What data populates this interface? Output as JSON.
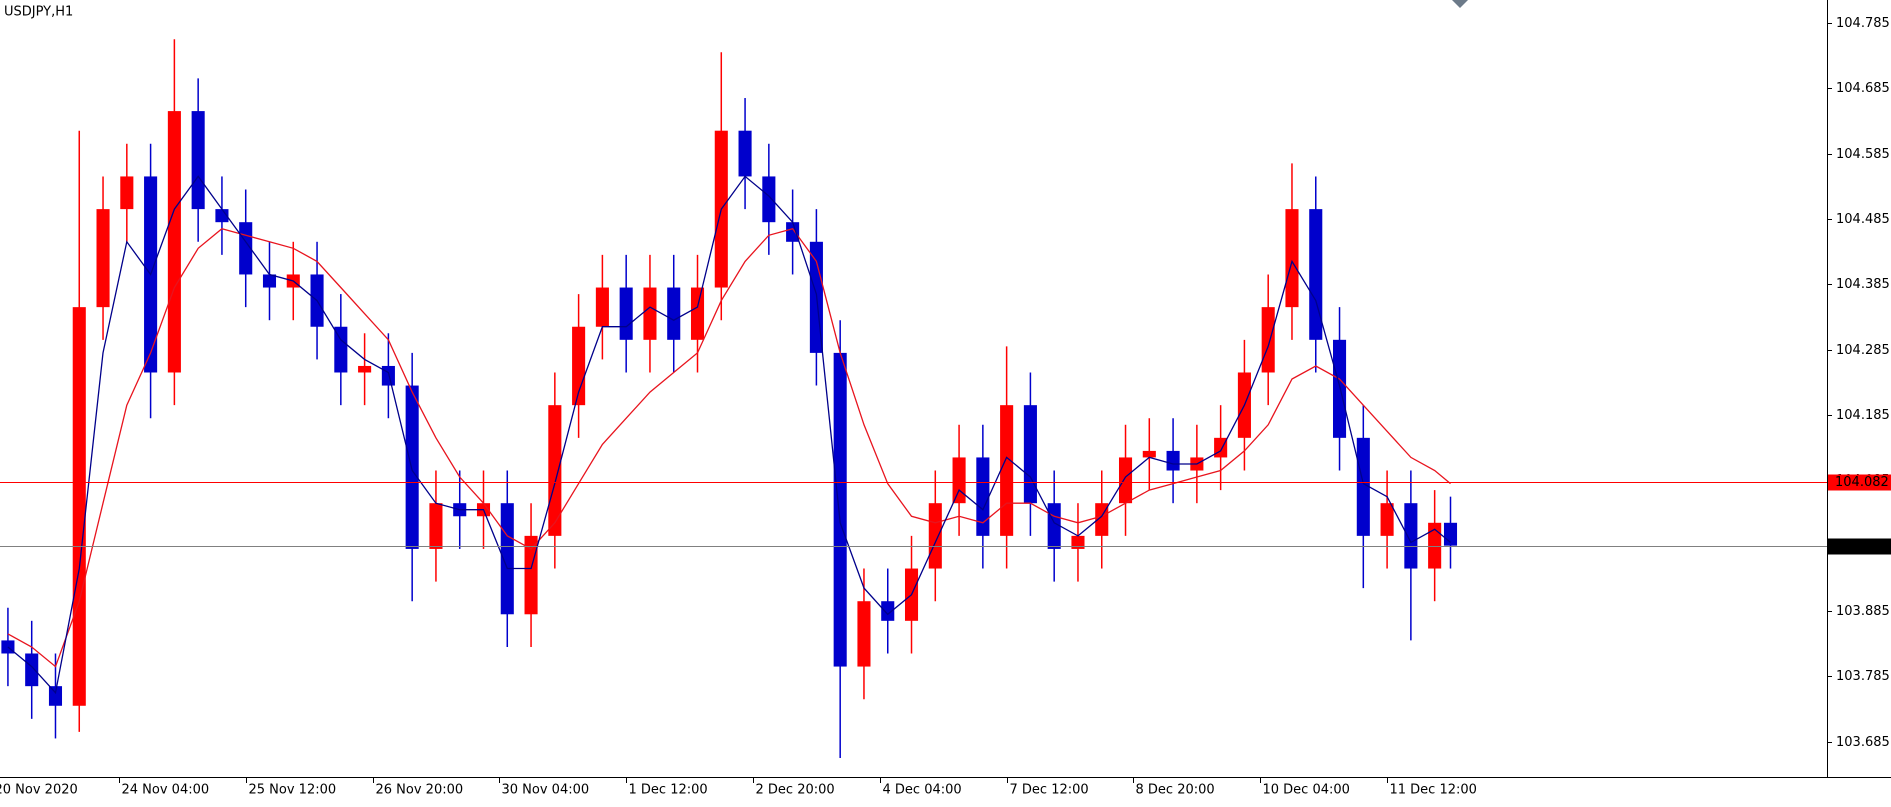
{
  "chart_data": {
    "type": "candlestick",
    "title": "USDJPY,H1",
    "up_color": "#ff0000",
    "down_color": "#0000cc",
    "x": [
      0,
      6,
      12,
      18,
      24,
      30,
      36,
      42,
      48,
      54,
      60,
      66,
      72,
      78,
      84,
      90,
      96,
      102,
      108,
      114,
      120,
      126,
      132,
      138,
      144,
      150,
      156,
      162,
      168,
      174,
      180,
      186,
      192,
      198,
      204,
      210,
      216,
      222,
      228,
      234,
      240,
      246,
      252,
      258,
      264,
      270,
      276,
      282,
      288,
      294,
      300,
      306,
      312,
      318,
      324,
      330,
      336,
      342,
      348,
      354,
      360,
      364
    ],
    "open": [
      103.84,
      103.82,
      103.77,
      103.74,
      104.35,
      104.5,
      104.55,
      104.25,
      104.65,
      104.5,
      104.48,
      104.4,
      104.38,
      104.4,
      104.32,
      104.25,
      104.26,
      104.23,
      103.98,
      104.05,
      104.03,
      104.05,
      103.88,
      104.0,
      104.2,
      104.32,
      104.38,
      104.3,
      104.38,
      104.3,
      104.38,
      104.62,
      104.55,
      104.48,
      104.45,
      104.28,
      103.8,
      103.9,
      103.87,
      103.95,
      104.05,
      104.12,
      104.0,
      104.2,
      104.05,
      103.98,
      104.0,
      104.05,
      104.12,
      104.13,
      104.1,
      104.12,
      104.15,
      104.25,
      104.35,
      104.5,
      104.3,
      104.15,
      104.0,
      104.05,
      103.95,
      104.02
    ],
    "high": [
      103.89,
      103.87,
      103.82,
      104.62,
      104.55,
      104.6,
      104.6,
      104.76,
      104.7,
      104.55,
      104.53,
      104.45,
      104.45,
      104.45,
      104.37,
      104.31,
      104.31,
      104.28,
      104.1,
      104.1,
      104.1,
      104.1,
      104.05,
      104.25,
      104.37,
      104.43,
      104.43,
      104.43,
      104.43,
      104.43,
      104.74,
      104.67,
      104.6,
      104.53,
      104.5,
      104.33,
      103.95,
      103.95,
      104.0,
      104.1,
      104.17,
      104.17,
      104.29,
      104.25,
      104.1,
      104.05,
      104.1,
      104.17,
      104.18,
      104.18,
      104.17,
      104.2,
      104.3,
      104.4,
      104.57,
      104.55,
      104.35,
      104.2,
      104.1,
      104.1,
      104.07,
      104.06
    ],
    "low": [
      103.77,
      103.72,
      103.69,
      103.7,
      104.3,
      104.45,
      104.18,
      104.2,
      104.45,
      104.43,
      104.35,
      104.33,
      104.33,
      104.27,
      104.2,
      104.2,
      104.18,
      103.9,
      103.93,
      103.98,
      103.98,
      103.83,
      103.83,
      103.95,
      104.15,
      104.27,
      104.25,
      104.25,
      104.25,
      104.25,
      104.33,
      104.5,
      104.43,
      104.4,
      104.23,
      103.66,
      103.75,
      103.82,
      103.82,
      103.9,
      104.0,
      103.95,
      103.95,
      104.0,
      103.93,
      103.93,
      103.95,
      104.0,
      104.07,
      104.05,
      104.05,
      104.07,
      104.1,
      104.2,
      104.3,
      104.25,
      104.1,
      103.92,
      103.95,
      103.84,
      103.9,
      103.95
    ],
    "close": [
      103.82,
      103.77,
      103.74,
      104.35,
      104.5,
      104.55,
      104.25,
      104.65,
      104.5,
      104.48,
      104.4,
      104.38,
      104.4,
      104.32,
      104.25,
      104.26,
      104.23,
      103.98,
      104.05,
      104.03,
      104.05,
      103.88,
      104.0,
      104.2,
      104.32,
      104.38,
      104.3,
      104.38,
      104.3,
      104.38,
      104.62,
      104.55,
      104.48,
      104.45,
      104.28,
      103.8,
      103.9,
      103.87,
      103.95,
      104.05,
      104.12,
      104.0,
      104.2,
      104.05,
      103.98,
      104.0,
      104.05,
      104.12,
      104.13,
      104.1,
      104.12,
      104.15,
      104.25,
      104.35,
      104.5,
      104.3,
      104.15,
      104.0,
      104.05,
      103.95,
      104.02,
      103.985
    ],
    "series": [
      {
        "color": "#e8141e",
        "values": [
          103.85,
          103.83,
          103.8,
          103.9,
          104.05,
          104.2,
          104.28,
          104.38,
          104.44,
          104.47,
          104.46,
          104.45,
          104.44,
          104.42,
          104.38,
          104.34,
          104.3,
          104.22,
          104.15,
          104.09,
          104.05,
          104.0,
          103.98,
          104.02,
          104.08,
          104.14,
          104.18,
          104.22,
          104.25,
          104.28,
          104.36,
          104.42,
          104.46,
          104.47,
          104.42,
          104.28,
          104.17,
          104.08,
          104.03,
          104.02,
          104.03,
          104.02,
          104.05,
          104.05,
          104.03,
          104.02,
          104.03,
          104.05,
          104.07,
          104.08,
          104.09,
          104.1,
          104.13,
          104.17,
          104.24,
          104.26,
          104.24,
          104.2,
          104.16,
          104.12,
          104.1,
          104.08
        ]
      },
      {
        "color": "#00008b",
        "values": [
          103.83,
          103.8,
          103.76,
          103.95,
          104.28,
          104.45,
          104.4,
          104.5,
          104.55,
          104.5,
          104.45,
          104.4,
          104.39,
          104.36,
          104.3,
          104.27,
          104.25,
          104.1,
          104.05,
          104.04,
          104.04,
          103.95,
          103.95,
          104.08,
          104.22,
          104.32,
          104.32,
          104.35,
          104.33,
          104.35,
          104.5,
          104.55,
          104.52,
          104.48,
          104.37,
          104.02,
          103.92,
          103.88,
          103.91,
          103.99,
          104.07,
          104.04,
          104.12,
          104.09,
          104.02,
          104.0,
          104.03,
          104.09,
          104.12,
          104.11,
          104.11,
          104.13,
          104.2,
          104.29,
          104.42,
          104.36,
          104.23,
          104.08,
          104.06,
          103.99,
          104.01,
          103.99
        ]
      }
    ],
    "lines": [
      {
        "value": 104.082,
        "color": "#ff0000"
      },
      {
        "value": 103.985,
        "color": "#808080"
      }
    ],
    "xlim": [
      -2,
      459
    ],
    "xticks": [
      {
        "value": -4,
        "label": "20 Nov 2020"
      },
      {
        "value": 28,
        "label": "24 Nov 04:00"
      },
      {
        "value": 60,
        "label": "25 Nov 12:00"
      },
      {
        "value": 92,
        "label": "26 Nov 20:00"
      },
      {
        "value": 124,
        "label": "30 Nov 04:00"
      },
      {
        "value": 156,
        "label": "1 Dec 12:00"
      },
      {
        "value": 188,
        "label": "2 Dec 20:00"
      },
      {
        "value": 220,
        "label": "4 Dec 04:00"
      },
      {
        "value": 252,
        "label": "7 Dec 12:00"
      },
      {
        "value": 284,
        "label": "8 Dec 20:00"
      },
      {
        "value": 316,
        "label": "10 Dec 04:00"
      },
      {
        "value": 348,
        "label": "11 Dec 12:00"
      }
    ],
    "ylim": [
      103.631,
      104.82
    ],
    "yticks": [
      104.785,
      104.685,
      104.585,
      104.485,
      104.385,
      104.285,
      104.185,
      104.085,
      103.985,
      103.885,
      103.785,
      103.685
    ]
  }
}
